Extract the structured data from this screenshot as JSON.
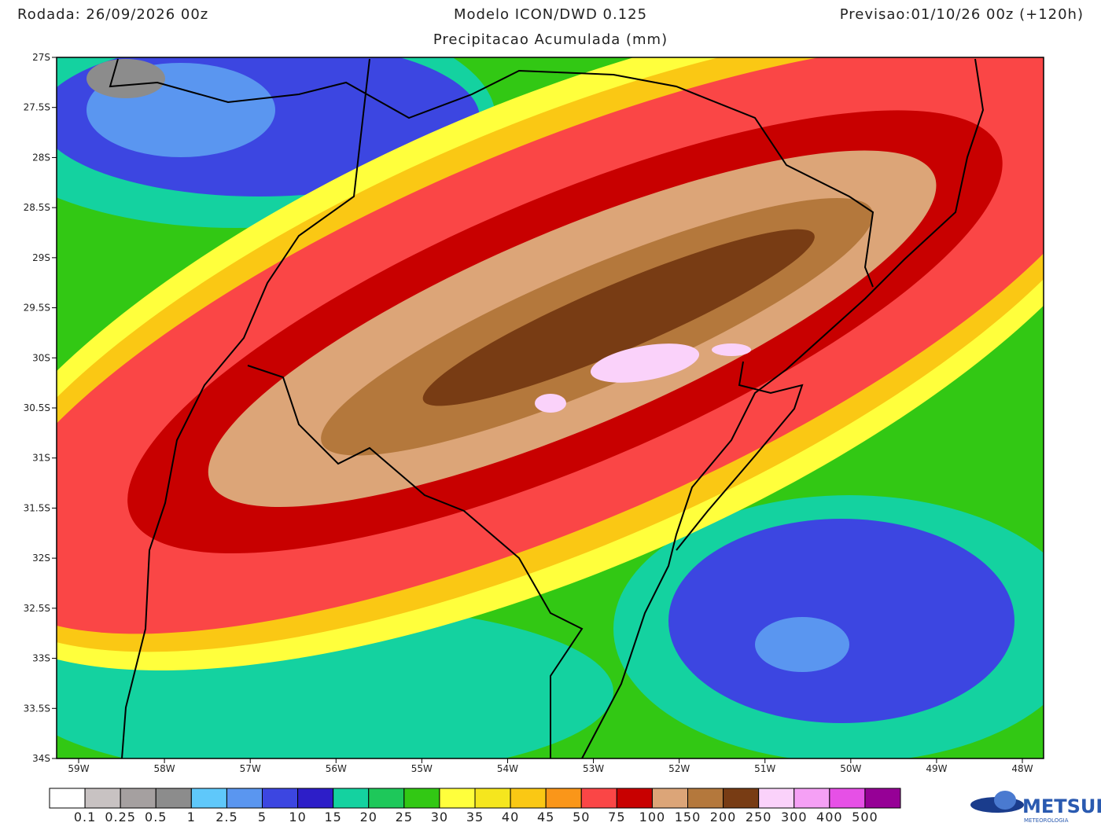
{
  "header": {
    "run": "Rodada: 26/09/2026 00z",
    "model": "Modelo ICON/DWD 0.125",
    "forecast": "Previsao:01/10/26 00z (+120h)",
    "subtitle": "Precipitacao Acumulada (mm)"
  },
  "map": {
    "lat_labels": [
      "27S",
      "27.5S",
      "28S",
      "28.5S",
      "29S",
      "29.5S",
      "30S",
      "30.5S",
      "31S",
      "31.5S",
      "32S",
      "32.5S",
      "33S",
      "33.5S",
      "34S"
    ],
    "lon_labels": [
      "59W",
      "58W",
      "57W",
      "56W",
      "55W",
      "54W",
      "53W",
      "52W",
      "51W",
      "50W",
      "49W",
      "48W"
    ]
  },
  "colorbar": {
    "colors": [
      "#ffffff",
      "#c8c2c2",
      "#a5a0a0",
      "#8c8c8c",
      "#5fc8fa",
      "#5a96f0",
      "#3c46e1",
      "#2d1ec8",
      "#14d2a0",
      "#1ec85a",
      "#32c814",
      "#ffff3c",
      "#f5e61e",
      "#fac814",
      "#fa9619",
      "#fa4646",
      "#c80000",
      "#dca578",
      "#b4783c",
      "#783c14",
      "#fad2fa",
      "#f5a0f5",
      "#e650e6",
      "#960096"
    ],
    "levels": [
      0.1,
      0.25,
      0.5,
      1,
      2.5,
      5,
      10,
      15,
      20,
      25,
      30,
      35,
      40,
      45,
      50,
      75,
      100,
      150,
      200,
      250,
      300,
      400,
      500
    ]
  },
  "logo": {
    "name": "METSUL",
    "tagline": "METEOROLOGIA"
  }
}
